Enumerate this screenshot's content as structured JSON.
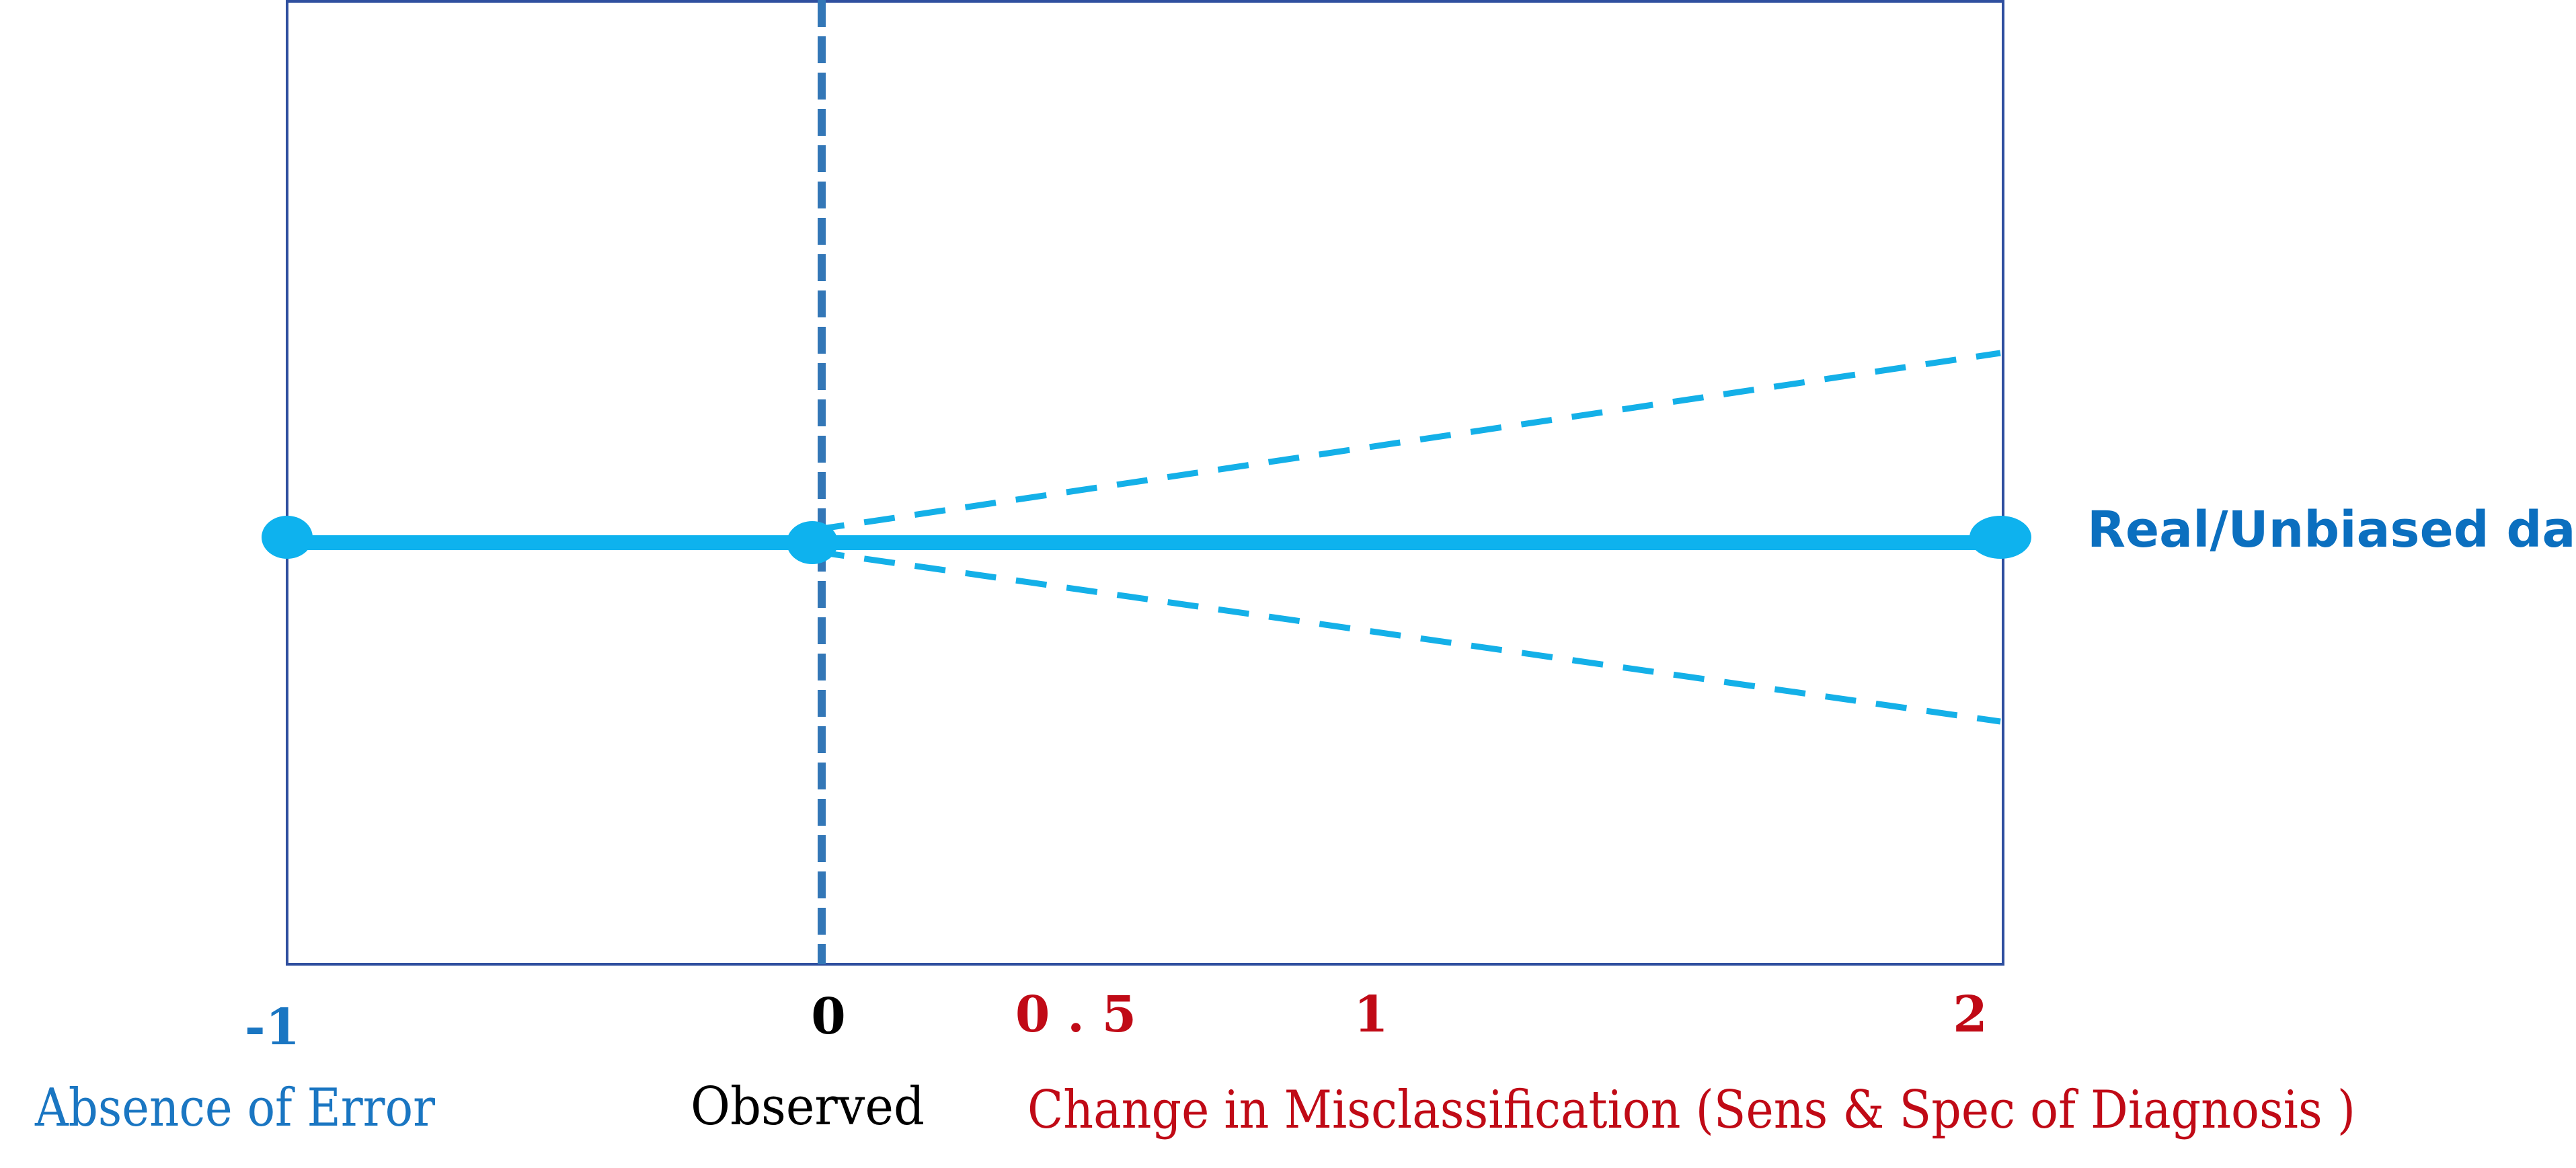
{
  "colors": {
    "frame": "#2F4F9F",
    "observed_line": "#3377B7",
    "main_line": "#0EB2EE",
    "dashed_branch": "#14B0E8",
    "negative_tick": "#1A76C2",
    "zero_tick": "#000000",
    "positive_tick": "#C00A16",
    "series_label": "#0B6FBF"
  },
  "series_label": "Real/Unbiased data",
  "ticks": {
    "minus_one": "-1",
    "zero": "0",
    "half": "0 . 5",
    "one": "1",
    "two": "2"
  },
  "captions": {
    "absence_of_error": "Absence of Error",
    "observed": "Observed",
    "change": "Change in Misclassification (Sens & Spec of Diagnosis )"
  }
}
